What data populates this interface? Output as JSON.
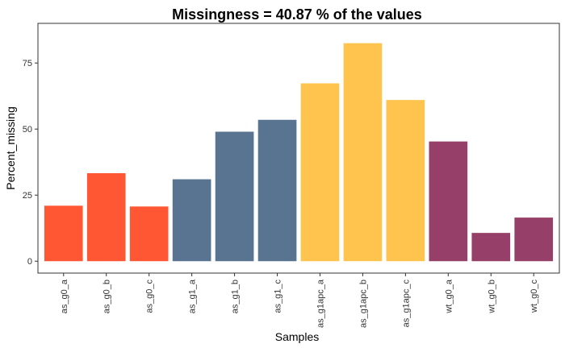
{
  "chart_data": {
    "type": "bar",
    "title": "Missingness =  40.87 % of the values",
    "xlabel": "Samples",
    "ylabel": "Percent_missing",
    "ylim": [
      -4.5,
      90
    ],
    "yticks": [
      0,
      25,
      50,
      75
    ],
    "grid": false,
    "legend": "none",
    "categories": [
      "as_g0_a",
      "as_g0_b",
      "as_g0_c",
      "as_g1_a",
      "as_g1_b",
      "as_g1_c",
      "as_g1apc_a",
      "as_g1apc_b",
      "as_g1apc_c",
      "wt_g0_a",
      "wt_g0_b",
      "wt_g0_c"
    ],
    "values": [
      21,
      33.3,
      20.7,
      31,
      49,
      53.5,
      67.3,
      82.5,
      61,
      45.3,
      10.7,
      16.5
    ],
    "colors": [
      "#FF5733",
      "#FF5733",
      "#FF5733",
      "#587491",
      "#587491",
      "#587491",
      "#FFC44D",
      "#FFC44D",
      "#FFC44D",
      "#963F68",
      "#963F68",
      "#963F68"
    ]
  }
}
